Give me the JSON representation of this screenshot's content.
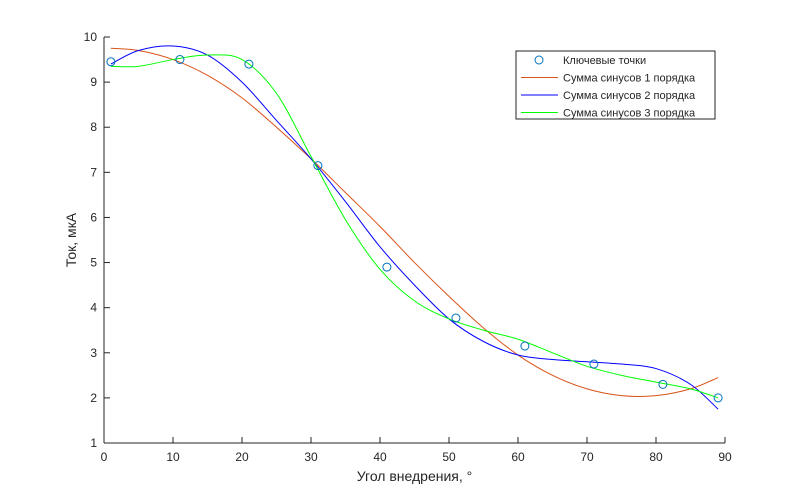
{
  "chart_data": {
    "type": "line",
    "title": "",
    "xlabel": "Угол внедрения, °",
    "ylabel": "Ток, мкА",
    "xlim": [
      0,
      90
    ],
    "ylim": [
      1,
      10
    ],
    "xticks": [
      0,
      10,
      20,
      30,
      40,
      50,
      60,
      70,
      80,
      90
    ],
    "yticks": [
      1,
      2,
      3,
      4,
      5,
      6,
      7,
      8,
      9,
      10
    ],
    "grid": false,
    "legend_position": "top-right",
    "series": [
      {
        "name": "Ключевые точки",
        "style": "markers",
        "color": "#0072BD",
        "x": [
          1,
          11,
          21,
          31,
          41,
          51,
          61,
          71,
          81,
          89
        ],
        "y": [
          9.45,
          9.5,
          9.4,
          7.15,
          4.9,
          3.77,
          3.15,
          2.75,
          2.3,
          2.0
        ]
      },
      {
        "name": "Сумма синусов 1 порядка",
        "style": "line",
        "color": "#D95319",
        "x": [
          1,
          5,
          10,
          15,
          20,
          25,
          30,
          35,
          40,
          45,
          50,
          55,
          60,
          65,
          70,
          75,
          80,
          85,
          89
        ],
        "y": [
          9.75,
          9.7,
          9.5,
          9.15,
          8.65,
          8.0,
          7.3,
          6.55,
          5.8,
          5.0,
          4.25,
          3.55,
          2.95,
          2.5,
          2.2,
          2.05,
          2.05,
          2.2,
          2.45
        ]
      },
      {
        "name": "Сумма синусов 2 порядка",
        "style": "line",
        "color": "#0000FF",
        "x": [
          1,
          5,
          10,
          15,
          20,
          25,
          30,
          35,
          40,
          45,
          50,
          55,
          60,
          65,
          70,
          75,
          80,
          85,
          89
        ],
        "y": [
          9.4,
          9.7,
          9.8,
          9.6,
          9.0,
          8.15,
          7.3,
          6.35,
          5.35,
          4.5,
          3.75,
          3.25,
          2.95,
          2.85,
          2.8,
          2.75,
          2.65,
          2.3,
          1.75
        ]
      },
      {
        "name": "Сумма синусов 3 порядка",
        "style": "line",
        "color": "#00FF00",
        "x": [
          1,
          5,
          10,
          15,
          20,
          25,
          30,
          35,
          40,
          45,
          50,
          55,
          60,
          65,
          70,
          75,
          80,
          85,
          89
        ],
        "y": [
          9.35,
          9.35,
          9.5,
          9.6,
          9.5,
          8.75,
          7.35,
          5.95,
          4.85,
          4.15,
          3.75,
          3.5,
          3.3,
          3.0,
          2.7,
          2.5,
          2.35,
          2.2,
          2.0
        ]
      }
    ]
  }
}
